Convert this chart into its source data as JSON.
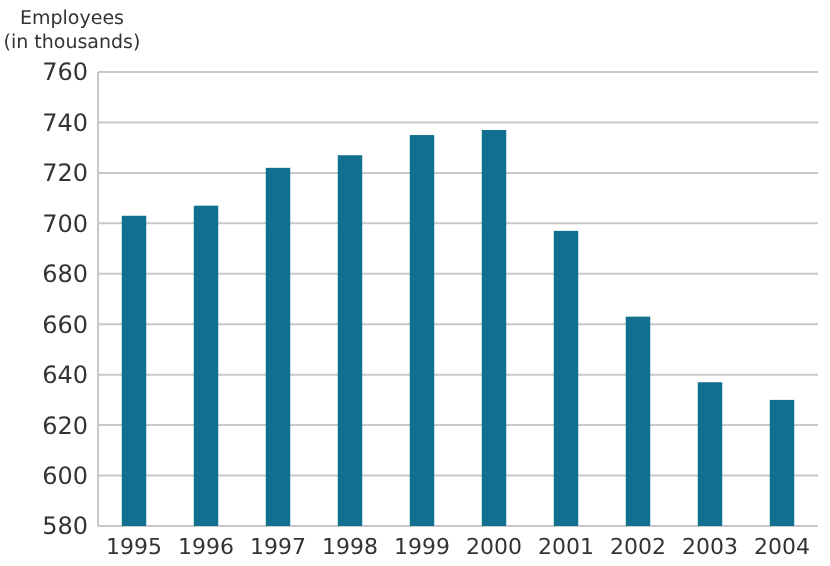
{
  "chart_data": {
    "type": "bar",
    "ylabel": "Employees\n(in thousands)",
    "categories": [
      "1995",
      "1996",
      "1997",
      "1998",
      "1999",
      "2000",
      "2001",
      "2002",
      "2003",
      "2004"
    ],
    "values": [
      703,
      707,
      722,
      727,
      735,
      737,
      697,
      663,
      637,
      630
    ],
    "color": "#11708f",
    "ylim": [
      580,
      760
    ],
    "yticks": [
      580,
      600,
      620,
      640,
      660,
      680,
      700,
      720,
      740,
      760
    ],
    "grid": "y"
  }
}
